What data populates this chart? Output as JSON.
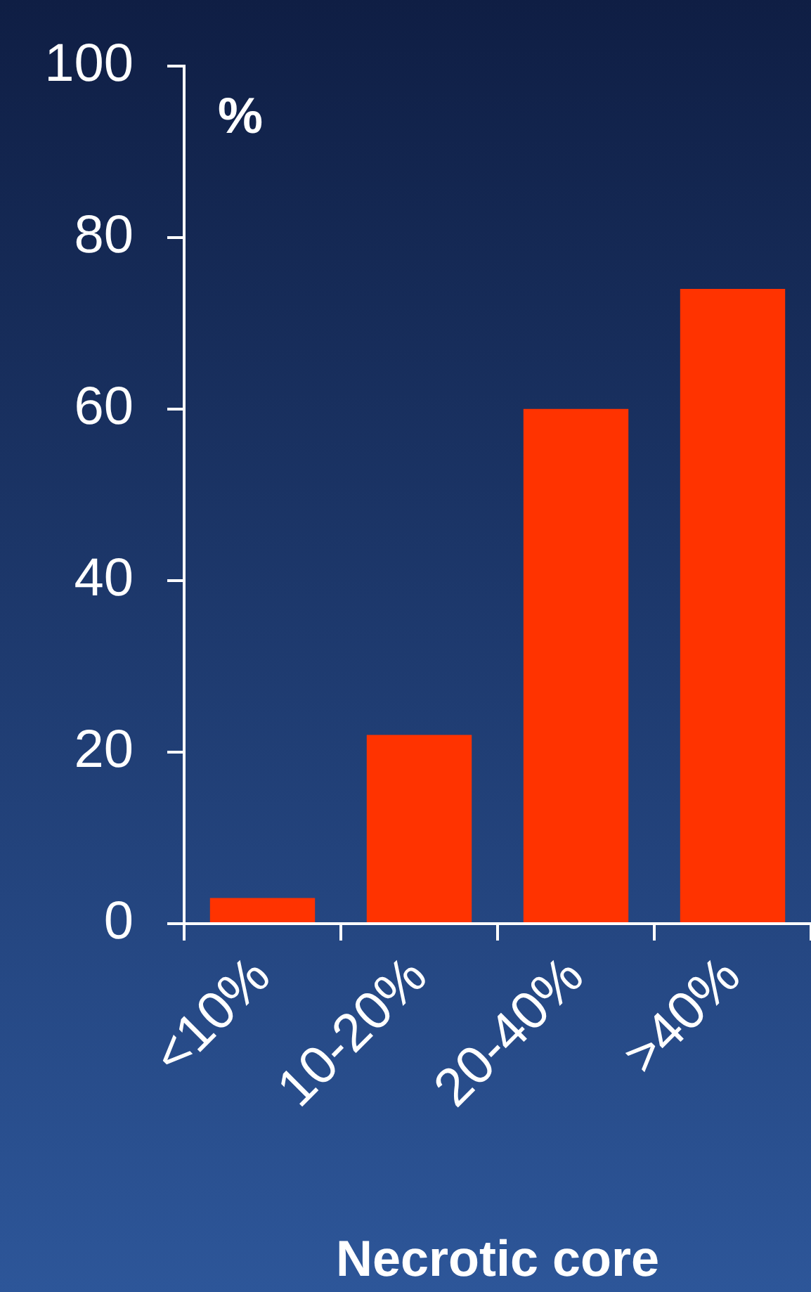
{
  "chart_data": {
    "type": "bar",
    "ylabel": "%",
    "xlabel": "Necrotic core",
    "categories": [
      "<10%",
      "10-20%",
      "20-40%",
      ">40%"
    ],
    "values": [
      3,
      22,
      60,
      74
    ],
    "color": "#ff3300",
    "ylim": [
      0,
      100
    ],
    "yticks": [
      0,
      20,
      40,
      60,
      80,
      100
    ],
    "grid": false,
    "legend": false
  }
}
